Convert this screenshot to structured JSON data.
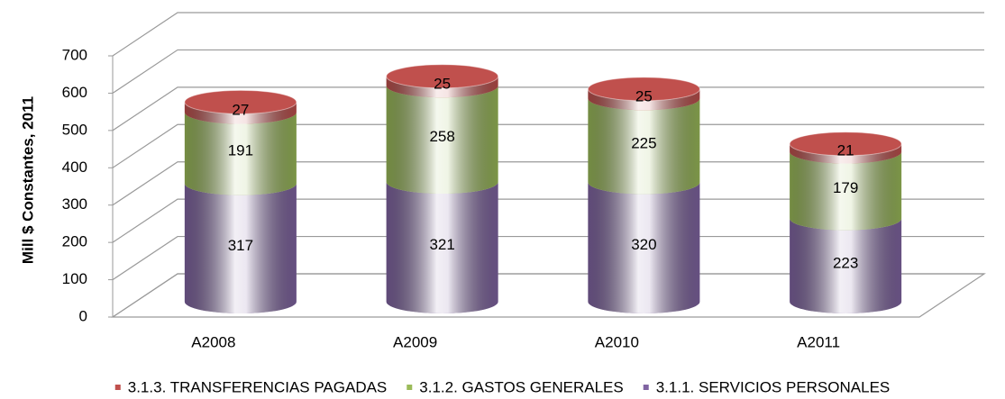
{
  "chart_data": {
    "type": "bar",
    "stacked": true,
    "three_d": true,
    "ylabel": "Mill $ Constantes, 2011",
    "categories": [
      "A2008",
      "A2009",
      "A2010",
      "A2011"
    ],
    "series": [
      {
        "name": "3.1.1.  SERVICIOS PERSONALES",
        "color": "#8064a2",
        "values": [
          317,
          321,
          320,
          223
        ]
      },
      {
        "name": "3.1.2. GASTOS GENERALES",
        "color": "#9bbb59",
        "values": [
          191,
          258,
          225,
          179
        ]
      },
      {
        "name": "3.1.3. TRANSFERENCIAS PAGADAS",
        "color": "#c0504d",
        "values": [
          27,
          25,
          25,
          21
        ]
      }
    ],
    "ylim": [
      0,
      700
    ],
    "yticks": [
      0,
      100,
      200,
      300,
      400,
      500,
      600,
      700
    ],
    "grid": true,
    "legend": "bottom"
  }
}
